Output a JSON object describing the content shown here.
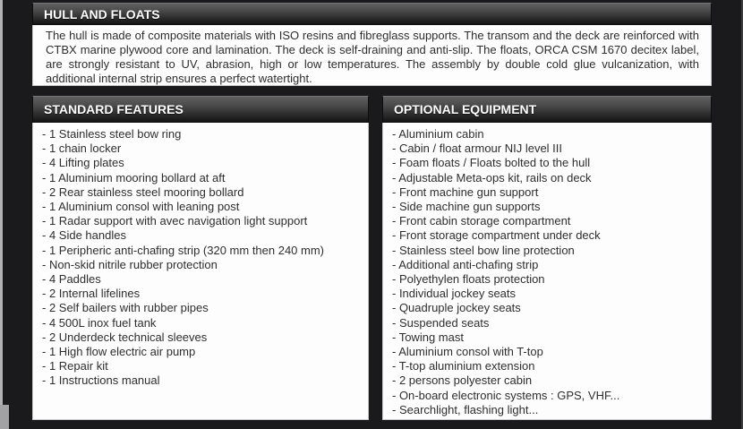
{
  "colors": {
    "page_background": "#1a1a1c",
    "header_bar_top": "#606060",
    "header_bar_bottom": "#141414",
    "panel_background": "#fdfdfd",
    "header_text": "#ffffff",
    "body_text": "#2e2e2e"
  },
  "hull_section": {
    "title": "HULL AND FLOATS",
    "body": "The hull is made of composite materials with ISO resins and fibreglass supports. The transom and the deck are reinforced with CTBX marine plywood core and lamination. The deck is self-draining and anti-slip. The floats, ORCA CSM 1670 decitex label, are strongly resistant to UV, abrasion, high or low temperatures. The assembly by double cold glue vulcanization, with additional internal strip ensures a perfect watertight."
  },
  "standard_features": {
    "title": "STANDARD FEATURES",
    "items": [
      "- 1 Stainless steel bow ring",
      "- 1 chain locker",
      "- 4 Lifting plates",
      "- 1 Aluminium mooring bollard at aft",
      "- 2 Rear stainless steel mooring bollard",
      "- 1 Aluminium consol with leaning post",
      "- 1 Radar support with avec navigation light support",
      "- 4 Side handles",
      "- 1 Peripheric anti-chafing strip (320 mm then 240 mm)",
      "- Non-skid nitrile rubber protection",
      "- 4 Paddles",
      "- 2 Internal lifelines",
      "- 2 Self bailers with rubber pipes",
      "- 4 500L inox fuel tank",
      "- 2 Underdeck technical sleeves",
      "- 1 High flow electric air pump",
      "- 1 Repair kit",
      "- 1 Instructions manual"
    ]
  },
  "optional_equipment": {
    "title": "OPTIONAL EQUIPMENT",
    "items": [
      "- Aluminium cabin",
      "- Cabin / float armour NIJ level III",
      "- Foam floats / Floats bolted to the hull",
      "- Adjustable Meta-ops kit, rails on deck",
      "- Front machine gun support",
      "- Side machine gun supports",
      "- Front cabin storage compartment",
      "- Front storage compartment under deck",
      "- Stainless steel bow line protection",
      "- Additional anti-chafing strip",
      "- Polyethylen floats protection",
      "- Individual jockey seats",
      "- Quadruple jockey seats",
      "- Suspended seats",
      "- Towing mast",
      "- Aluminium consol with T-top",
      "- T-top aluminium extension",
      "- 2 persons polyester cabin",
      "- On-board electronic systems : GPS, VHF...",
      "- Searchlight, flashing light..."
    ]
  }
}
